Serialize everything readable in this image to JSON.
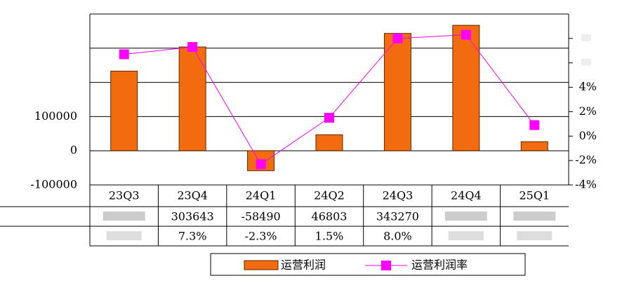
{
  "chart_data": {
    "type": "bar",
    "categories": [
      "23Q3",
      "23Q4",
      "24Q1",
      "24Q2",
      "24Q3",
      "24Q4",
      "25Q1"
    ],
    "series": [
      {
        "name": "运营利润",
        "color": "#f26b0f",
        "values": [
          233000,
          303643,
          -58490,
          46803,
          343270,
          367000,
          26500
        ]
      },
      {
        "name": "运营利润率",
        "color": "#ff00ff",
        "type": "line",
        "axis": "y2",
        "values": [
          6.7,
          7.3,
          -2.3,
          1.5,
          8.0,
          8.3,
          0.9
        ],
        "value_labels": [
          null,
          "7.3%",
          "-2.3%",
          "1.5%",
          "8.0%",
          null,
          null
        ]
      }
    ],
    "ylim": [
      -100000,
      400000
    ],
    "yticks": [
      {
        "value": -100000,
        "label": "-100000"
      },
      0,
      100000,
      {
        "value": 200000,
        "label": null
      },
      {
        "value": 300000,
        "label": null
      },
      {
        "value": 400000,
        "label": null
      }
    ],
    "y2lim": [
      -4,
      10
    ],
    "y2ticks": [
      {
        "value": -4,
        "label": "-4%"
      },
      {
        "value": -2,
        "label": "-2%"
      },
      {
        "value": 0,
        "label": "0%"
      },
      {
        "value": 2,
        "label": "2%"
      },
      {
        "value": 4,
        "label": "4%"
      },
      {
        "value": 6,
        "label": null
      },
      {
        "value": 8,
        "label": null
      }
    ],
    "grid": true,
    "legend": "bottom"
  }
}
